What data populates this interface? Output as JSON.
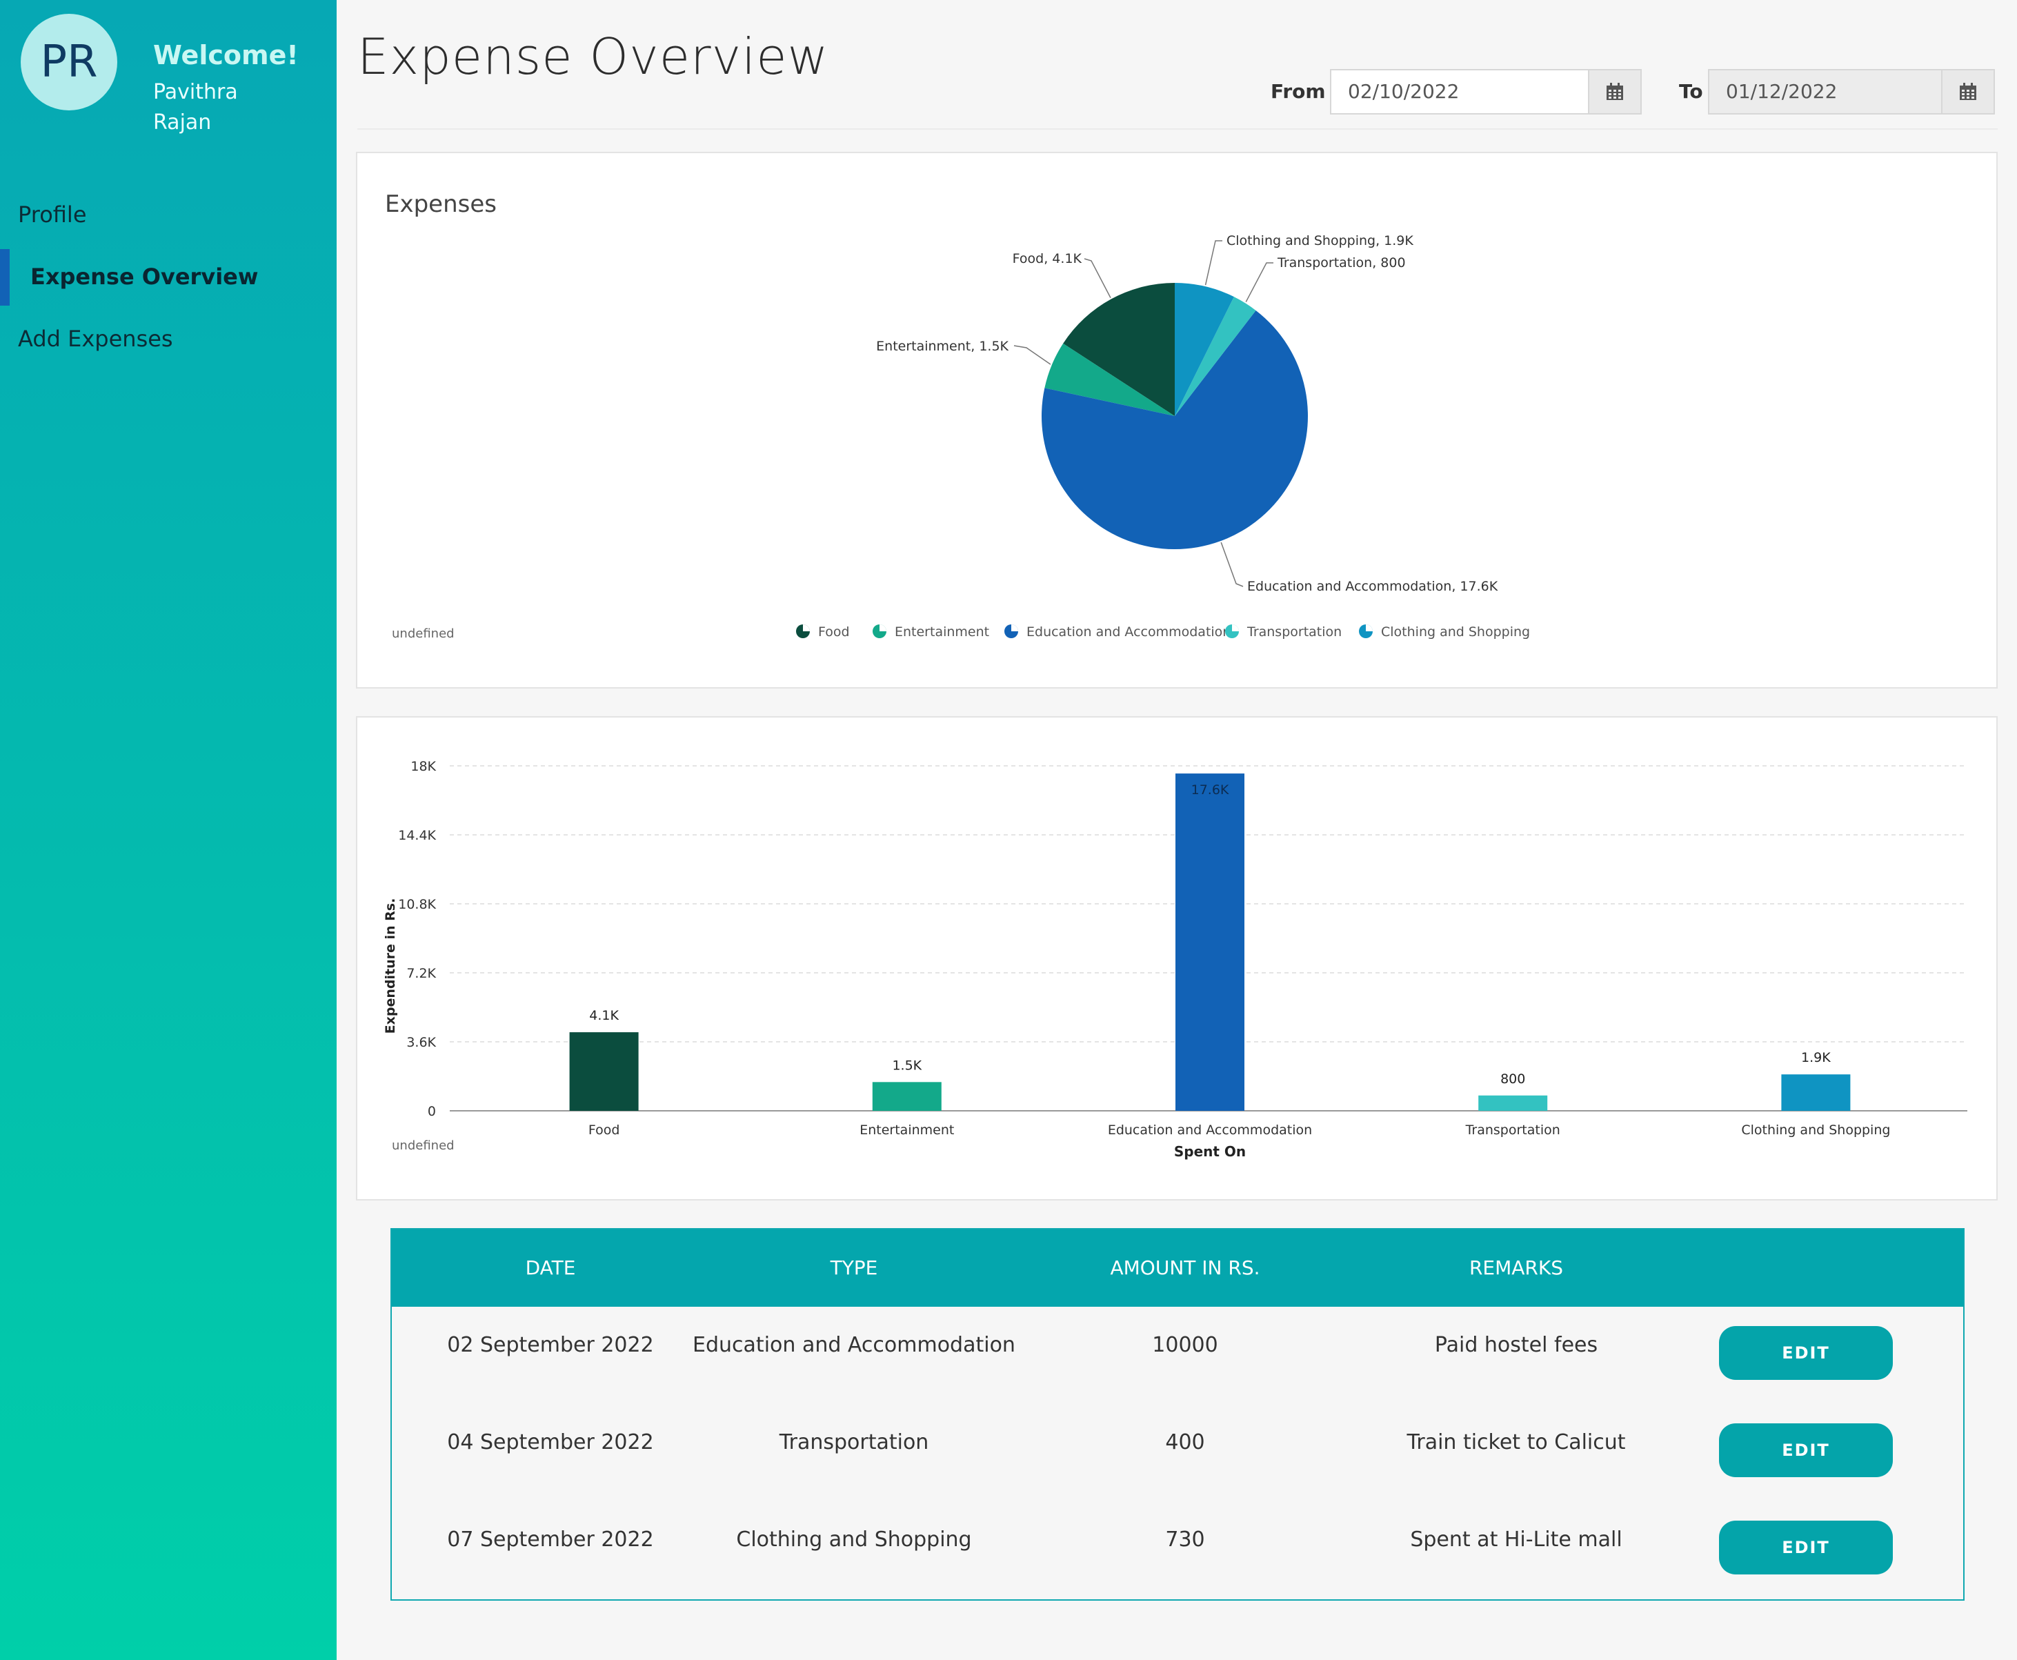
{
  "sidebar": {
    "initials": "PR",
    "welcome": "Welcome!",
    "user_name": "Pavithra Rajan",
    "nav": [
      {
        "label": "Profile"
      },
      {
        "label": "Expense Overview",
        "active": true
      },
      {
        "label": "Add Expenses"
      }
    ]
  },
  "header": {
    "title": "Expense Overview",
    "from_label": "From",
    "from_value": "02/10/2022",
    "to_label": "To",
    "to_value": "01/12/2022"
  },
  "pie_card": {
    "title": "Expenses",
    "footnote": "undefined"
  },
  "bar_card": {
    "footnote": "undefined"
  },
  "colors": {
    "food": "#0b4d3e",
    "entertainment": "#13a98a",
    "education": "#1262b6",
    "transportation": "#33c2c1",
    "clothing": "#0f94c2",
    "accent": "#04a6ad"
  },
  "chart_data": [
    {
      "type": "pie",
      "title": "Expenses",
      "slices": [
        {
          "label": "Food",
          "value": 4100,
          "display": "4.1K"
        },
        {
          "label": "Entertainment",
          "value": 1500,
          "display": "1.5K"
        },
        {
          "label": "Education and Accommodation",
          "value": 17600,
          "display": "17.6K"
        },
        {
          "label": "Transportation",
          "value": 800,
          "display": "800"
        },
        {
          "label": "Clothing and Shopping",
          "value": 1900,
          "display": "1.9K"
        }
      ],
      "callouts": [
        "Food, 4.1K",
        "Entertainment, 1.5K",
        "Education and Accommodation, 17.6K",
        "Transportation, 800",
        "Clothing and Shopping, 1.9K"
      ],
      "legend": [
        "Food",
        "Entertainment",
        "Education and Accommodation",
        "Transportation",
        "Clothing and Shopping"
      ],
      "legend_position": "bottom"
    },
    {
      "type": "bar",
      "categories": [
        "Food",
        "Entertainment",
        "Education and Accommodation",
        "Transportation",
        "Clothing and Shopping"
      ],
      "values": [
        4100,
        1500,
        17600,
        800,
        1900
      ],
      "value_labels": [
        "4.1K",
        "1.5K",
        "17.6K",
        "800",
        "1.9K"
      ],
      "xlabel": "Spent On",
      "ylabel": "Expenditure in Rs.",
      "ylim": [
        0,
        18000
      ],
      "yticks": [
        0,
        3600,
        7200,
        10800,
        14400,
        18000
      ],
      "ytick_labels": [
        "0",
        "3.6K",
        "7.2K",
        "10.8K",
        "14.4K",
        "18K"
      ],
      "grid": true
    }
  ],
  "table": {
    "headers": [
      "DATE",
      "TYPE",
      "AMOUNT IN RS.",
      "REMARKS"
    ],
    "edit_label": "EDIT",
    "rows": [
      {
        "date": "02 September 2022",
        "type": "Education and Accommodation",
        "amount": "10000",
        "remarks": "Paid hostel fees"
      },
      {
        "date": "04 September 2022",
        "type": "Transportation",
        "amount": "400",
        "remarks": "Train ticket to Calicut"
      },
      {
        "date": "07 September 2022",
        "type": "Clothing and Shopping",
        "amount": "730",
        "remarks": "Spent at Hi-Lite mall"
      }
    ]
  }
}
